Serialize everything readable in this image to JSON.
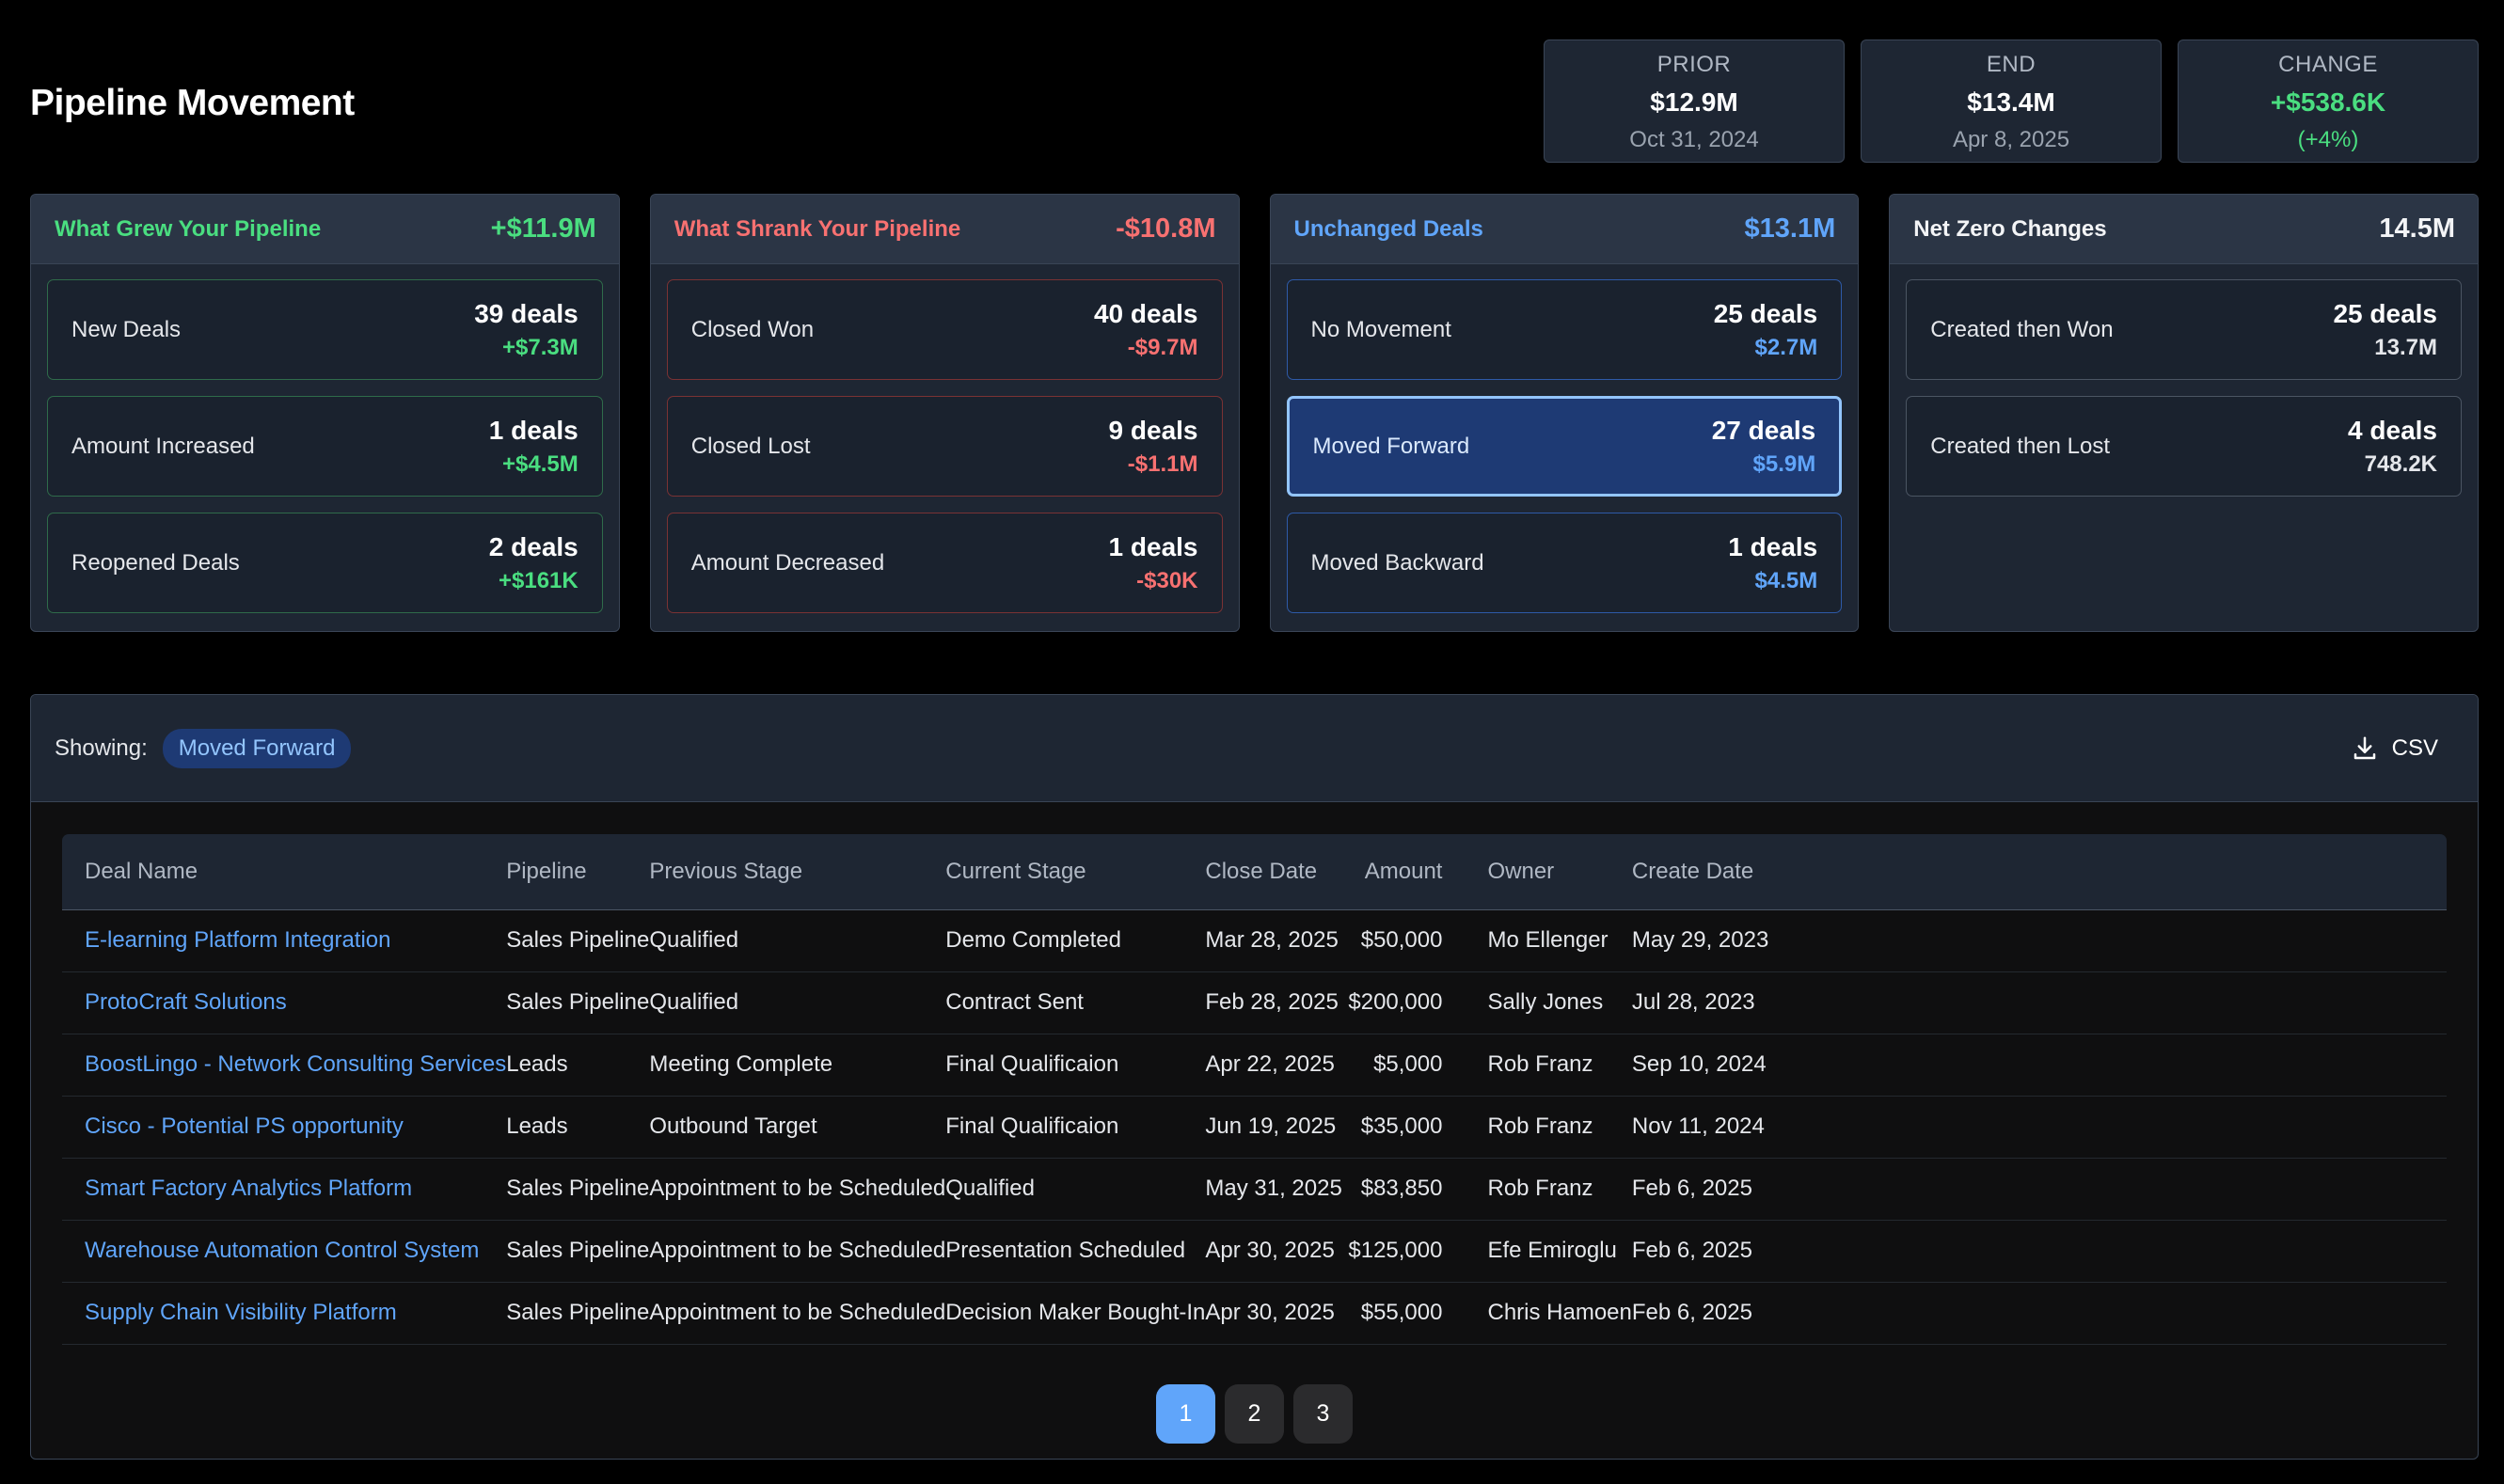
{
  "title": "Pipeline Movement",
  "summary": [
    {
      "label": "PRIOR",
      "value": "$12.9M",
      "sub": "Oct 31, 2024"
    },
    {
      "label": "END",
      "value": "$13.4M",
      "sub": "Apr 8, 2025"
    },
    {
      "label": "CHANGE",
      "value": "+$538.6K",
      "sub": "(+4%)"
    }
  ],
  "groups": [
    {
      "title": "What Grew Your Pipeline",
      "total": "+$11.9M",
      "items": [
        {
          "label": "New Deals",
          "count": "39 deals",
          "amount": "+$7.3M"
        },
        {
          "label": "Amount Increased",
          "count": "1 deals",
          "amount": "+$4.5M"
        },
        {
          "label": "Reopened Deals",
          "count": "2 deals",
          "amount": "+$161K"
        }
      ]
    },
    {
      "title": "What Shrank Your Pipeline",
      "total": "-$10.8M",
      "items": [
        {
          "label": "Closed Won",
          "count": "40 deals",
          "amount": "-$9.7M"
        },
        {
          "label": "Closed Lost",
          "count": "9 deals",
          "amount": "-$1.1M"
        },
        {
          "label": "Amount Decreased",
          "count": "1 deals",
          "amount": "-$30K"
        }
      ]
    },
    {
      "title": "Unchanged Deals",
      "total": "$13.1M",
      "items": [
        {
          "label": "No Movement",
          "count": "25 deals",
          "amount": "$2.7M"
        },
        {
          "label": "Moved Forward",
          "count": "27 deals",
          "amount": "$5.9M"
        },
        {
          "label": "Moved Backward",
          "count": "1 deals",
          "amount": "$4.5M"
        }
      ]
    },
    {
      "title": "Net Zero Changes",
      "total": "14.5M",
      "items": [
        {
          "label": "Created then Won",
          "count": "25 deals",
          "amount": "13.7M"
        },
        {
          "label": "Created then Lost",
          "count": "4 deals",
          "amount": "748.2K"
        }
      ]
    }
  ],
  "panel": {
    "showing_label": "Showing:",
    "filter": "Moved Forward",
    "csv_label": "CSV",
    "csv_icon": "download-icon"
  },
  "table": {
    "columns": [
      "Deal Name",
      "Pipeline",
      "Previous Stage",
      "Current Stage",
      "Close Date",
      "Amount",
      "Owner",
      "Create Date"
    ],
    "rows": [
      [
        "E-learning Platform Integration",
        "Sales Pipeline",
        "Qualified",
        "Demo Completed",
        "Mar 28, 2025",
        "$50,000",
        "Mo Ellenger",
        "May 29, 2023"
      ],
      [
        "ProtoCraft Solutions",
        "Sales Pipeline",
        "Qualified",
        "Contract Sent",
        "Feb 28, 2025",
        "$200,000",
        "Sally Jones",
        "Jul 28, 2023"
      ],
      [
        "BoostLingo - Network Consulting Services",
        "Leads",
        "Meeting Complete",
        "Final Qualificaion",
        "Apr 22, 2025",
        "$5,000",
        "Rob Franz",
        "Sep 10, 2024"
      ],
      [
        "Cisco - Potential PS opportunity",
        "Leads",
        "Outbound Target",
        "Final Qualificaion",
        "Jun 19, 2025",
        "$35,000",
        "Rob Franz",
        "Nov 11, 2024"
      ],
      [
        "Smart Factory Analytics Platform",
        "Sales Pipeline",
        "Appointment to be Scheduled",
        "Qualified",
        "May 31, 2025",
        "$83,850",
        "Rob Franz",
        "Feb 6, 2025"
      ],
      [
        "Warehouse Automation Control System",
        "Sales Pipeline",
        "Appointment to be Scheduled",
        "Presentation Scheduled",
        "Apr 30, 2025",
        "$125,000",
        "Efe Emiroglu",
        "Feb 6, 2025"
      ],
      [
        "Supply Chain Visibility Platform",
        "Sales Pipeline",
        "Appointment to be Scheduled",
        "Decision Maker Bought-In",
        "Apr 30, 2025",
        "$55,000",
        "Chris Hamoen",
        "Feb 6, 2025"
      ]
    ]
  },
  "pagination": {
    "pages": [
      "1",
      "2",
      "3"
    ],
    "current": "1"
  },
  "colors": {
    "grew": "#4ade80",
    "shrank": "#f87171",
    "unchanged": "#60a5fa",
    "selected": "#1e3a74"
  }
}
